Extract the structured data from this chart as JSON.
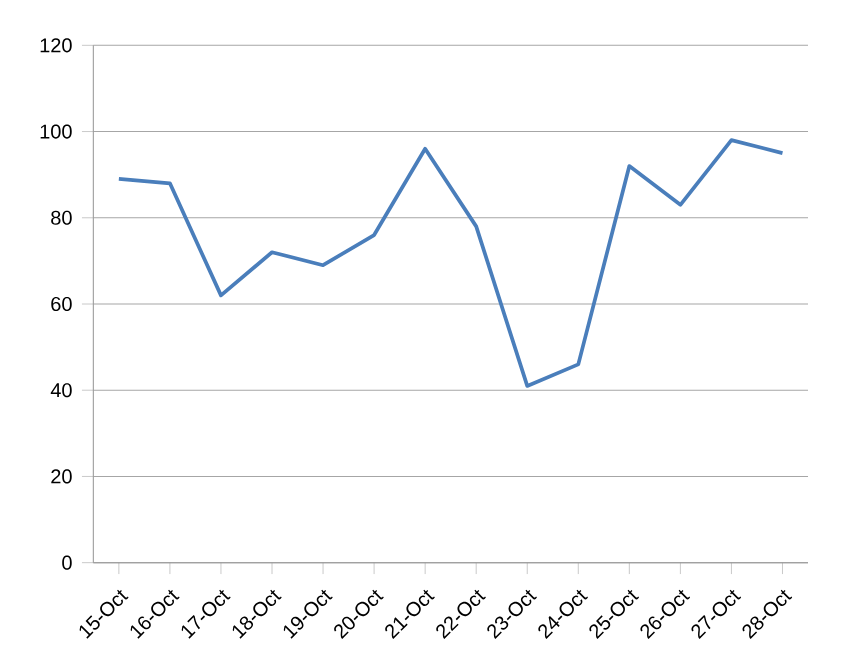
{
  "chart_data": {
    "type": "line",
    "categories": [
      "15-Oct",
      "16-Oct",
      "17-Oct",
      "18-Oct",
      "19-Oct",
      "20-Oct",
      "21-Oct",
      "22-Oct",
      "23-Oct",
      "24-Oct",
      "25-Oct",
      "26-Oct",
      "27-Oct",
      "28-Oct"
    ],
    "series": [
      {
        "color": "#4a7ebb",
        "values": [
          89,
          88,
          62,
          72,
          69,
          76,
          96,
          78,
          41,
          46,
          92,
          83,
          98,
          95
        ]
      }
    ],
    "ylim": [
      0,
      120
    ],
    "yticks": [
      0,
      20,
      40,
      60,
      80,
      100,
      120
    ],
    "grid": "y",
    "legend": false,
    "marker": "none",
    "line_style": "solid"
  }
}
